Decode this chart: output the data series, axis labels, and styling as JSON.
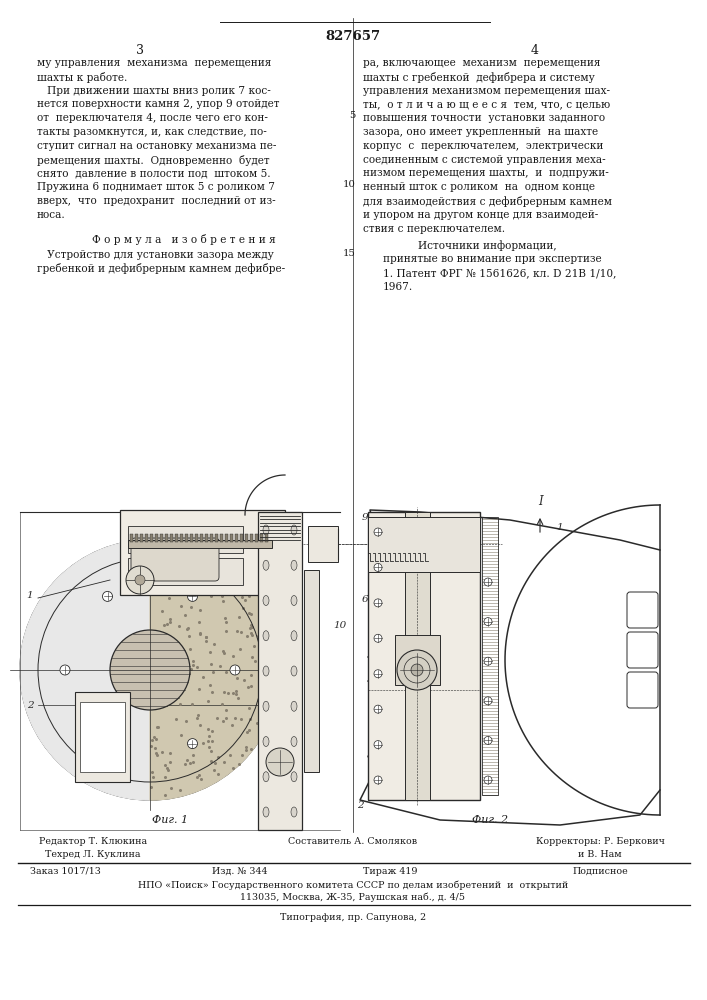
{
  "patent_number": "827657",
  "page_left": "3",
  "page_right": "4",
  "bg_color": "#ffffff",
  "text_color": "#1a1a1a",
  "draw_color": "#2a2a2a",
  "col_left_text": [
    "му управления  механизма  перемещения",
    "шахты к работе.",
    "   При движении шахты вниз ролик 7 кос-",
    "нется поверхности камня 2, упор 9 отойдет",
    "от  переключателя 4, после чего его кон-",
    "такты разомкнутся, и, как следствие, по-",
    "ступит сигнал на остановку механизма пе-",
    "ремещения шахты.  Одновременно  будет",
    "снято  давление в полости под  штоком 5.",
    "Пружина 6 поднимает шток 5 с роликом 7",
    "вверх,  что  предохранит  последний от из-",
    "носа."
  ],
  "formula_title": "Ф о р м у л а   и з о б р е т е н и я",
  "formula_text": [
    "   Устройство для установки зазора между",
    "гребенкой и дефибрерным камнем дефибре-"
  ],
  "col_right_text": [
    "ра, включающее  механизм  перемещения",
    "шахты с гребенкой  дефибрера и систему",
    "управления механизмом перемещения шах-",
    "ты,  о т л и ч а ю щ е е с я  тем, что, с целью",
    "повышения точности  установки заданного",
    "зазора, оно имеет укрепленный  на шахте",
    "корпус  с  переключателем,  электрически",
    "соединенным с системой управления меха-",
    "низмом перемещения шахты,  и  подпружи-",
    "ненный шток с роликом  на  одном конце",
    "для взаимодействия с дефибрерным камнем",
    "и упором на другом конце для взаимодей-",
    "ствия с переключателем."
  ],
  "sources_title": "Источники информации,",
  "sources_line1": "принятые во внимание при экспертизе",
  "sources_line2": "1. Патент ФРГ № 1561626, кл. D 21В 1/10,",
  "sources_line3": "1967.",
  "fig1_label": "Фиг. 1",
  "fig2_label": "Фиг. 2",
  "footer_editor": "Редактор Т. Клюкина",
  "footer_composer": "Составитель А. Смоляков",
  "footer_correctors": "Корректоры: Р. Беркович",
  "footer_correctors2": "и В. Нам",
  "footer_techred": "Техред Л. Куклина",
  "footer_order": "Заказ 1017/13",
  "footer_izd": "Изд. № 344",
  "footer_tirazh": "Тираж 419",
  "footer_podpis": "Подписное",
  "footer_npo": "НПО «Поиск» Государственного комитета СССР по делам изобретений  и  открытий",
  "footer_address": "113035, Москва, Ж-35, Раушская наб., д. 4/5",
  "footer_tipografia": "Типография, пр. Сапунова, 2",
  "line_numbers_right": [
    "5",
    "10",
    "15"
  ]
}
